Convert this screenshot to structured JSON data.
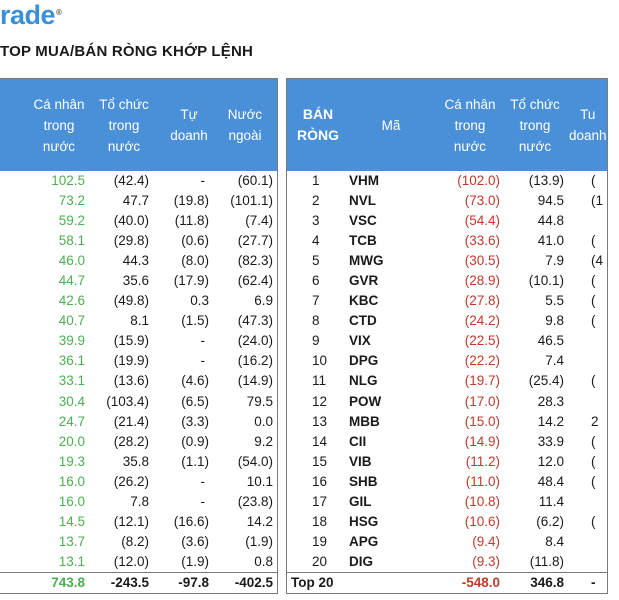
{
  "brand": {
    "logo_text": "rade",
    "logo_mark": "®"
  },
  "title": "TOP MUA/BÁN RÒNG KHỚP LỆNH",
  "left": {
    "headers": [
      "Cá nhân\ntrong\nnước",
      "Tổ chức\ntrong\nnước",
      "Tự\ndoanh",
      "Nước\nngoài"
    ],
    "rows": [
      [
        "102.5",
        "(42.4)",
        "-",
        "(60.1)"
      ],
      [
        "73.2",
        "47.7",
        "(19.8)",
        "(101.1)"
      ],
      [
        "59.2",
        "(40.0)",
        "(11.8)",
        "(7.4)"
      ],
      [
        "58.1",
        "(29.8)",
        "(0.6)",
        "(27.7)"
      ],
      [
        "46.0",
        "44.3",
        "(8.0)",
        "(82.3)"
      ],
      [
        "44.7",
        "35.6",
        "(17.9)",
        "(62.4)"
      ],
      [
        "42.6",
        "(49.8)",
        "0.3",
        "6.9"
      ],
      [
        "40.7",
        "8.1",
        "(1.5)",
        "(47.3)"
      ],
      [
        "39.9",
        "(15.9)",
        "-",
        "(24.0)"
      ],
      [
        "36.1",
        "(19.9)",
        "-",
        "(16.2)"
      ],
      [
        "33.1",
        "(13.6)",
        "(4.6)",
        "(14.9)"
      ],
      [
        "30.4",
        "(103.4)",
        "(6.5)",
        "79.5"
      ],
      [
        "24.7",
        "(21.4)",
        "(3.3)",
        "0.0"
      ],
      [
        "20.0",
        "(28.2)",
        "(0.9)",
        "9.2"
      ],
      [
        "19.3",
        "35.8",
        "(1.1)",
        "(54.0)"
      ],
      [
        "16.0",
        "(26.2)",
        "-",
        "10.1"
      ],
      [
        "16.0",
        "7.8",
        "-",
        "(23.8)"
      ],
      [
        "14.5",
        "(12.1)",
        "(16.6)",
        "14.2"
      ],
      [
        "13.7",
        "(8.2)",
        "(3.6)",
        "(1.9)"
      ],
      [
        "13.1",
        "(12.0)",
        "(1.9)",
        "0.8"
      ]
    ],
    "total": [
      "743.8",
      "-243.5",
      "-97.8",
      "-402.5"
    ]
  },
  "right": {
    "headers": [
      "BÁN\nRÒNG",
      "Mã",
      "Cá nhân\ntrong\nnước",
      "Tổ chức\ntrong\nnước",
      "Tu\ndoanh"
    ],
    "rows": [
      [
        "1",
        "VHM",
        "(102.0)",
        "(13.9)",
        "("
      ],
      [
        "2",
        "NVL",
        "(73.0)",
        "94.5",
        "(1"
      ],
      [
        "3",
        "VSC",
        "(54.4)",
        "44.8",
        ""
      ],
      [
        "4",
        "TCB",
        "(33.6)",
        "41.0",
        "("
      ],
      [
        "5",
        "MWG",
        "(30.5)",
        "7.9",
        "(4"
      ],
      [
        "6",
        "GVR",
        "(28.9)",
        "(10.1)",
        "("
      ],
      [
        "7",
        "KBC",
        "(27.8)",
        "5.5",
        "("
      ],
      [
        "8",
        "CTD",
        "(24.2)",
        "9.8",
        "("
      ],
      [
        "9",
        "VIX",
        "(22.5)",
        "46.5",
        ""
      ],
      [
        "10",
        "DPG",
        "(22.2)",
        "7.4",
        ""
      ],
      [
        "11",
        "NLG",
        "(19.7)",
        "(25.4)",
        "("
      ],
      [
        "12",
        "POW",
        "(17.0)",
        "28.3",
        ""
      ],
      [
        "13",
        "MBB",
        "(15.0)",
        "14.2",
        "2"
      ],
      [
        "14",
        "CII",
        "(14.9)",
        "33.9",
        "("
      ],
      [
        "15",
        "VIB",
        "(11.2)",
        "12.0",
        "("
      ],
      [
        "16",
        "SHB",
        "(11.0)",
        "48.4",
        "("
      ],
      [
        "17",
        "GIL",
        "(10.8)",
        "11.4",
        ""
      ],
      [
        "18",
        "HSG",
        "(10.6)",
        "(6.2)",
        "("
      ],
      [
        "19",
        "APG",
        "(9.4)",
        "8.4",
        ""
      ],
      [
        "20",
        "DIG",
        "(9.3)",
        "(11.8)",
        ""
      ]
    ],
    "total": [
      "Top 20",
      "",
      "-548.0",
      "346.8",
      "-"
    ]
  },
  "colors": {
    "header_bg": "#4a90d9",
    "buy": "#4caf50",
    "sell": "#c0392b",
    "logo": "#3b8ed8"
  }
}
